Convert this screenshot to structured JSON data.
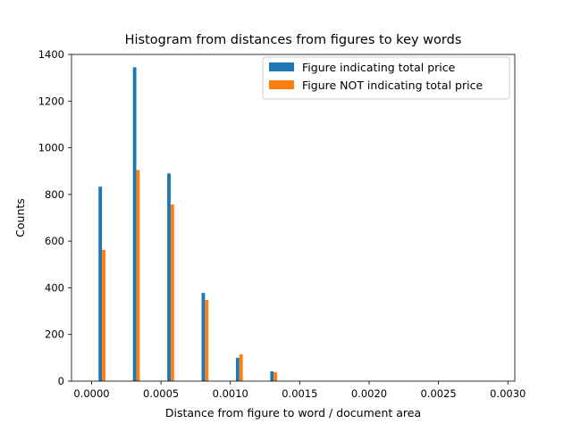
{
  "chart_data": {
    "type": "bar",
    "title": "Histogram from distances from figures to key words",
    "xlabel": "Distance from figure to word / document area",
    "ylabel": "Counts",
    "xlim": [
      -0.000145,
      0.00305
    ],
    "ylim": [
      0,
      1400
    ],
    "x_ticks": [
      "0.0000",
      "0.0005",
      "0.0010",
      "0.0015",
      "0.0020",
      "0.0025",
      "0.0030"
    ],
    "x_tick_values": [
      0,
      0.0005,
      0.001,
      0.0015,
      0.002,
      0.0025,
      0.003
    ],
    "y_ticks": [
      "0",
      "200",
      "400",
      "600",
      "800",
      "1000",
      "1200",
      "1400"
    ],
    "y_tick_values": [
      0,
      200,
      400,
      600,
      800,
      1000,
      1200,
      1400
    ],
    "bin_edges": [
      5e-05,
      9.95e-05,
      0.000149,
      0.0001985,
      0.000248,
      0.0002975,
      0.000347,
      0.0003965,
      0.000446,
      0.0004955,
      0.000545,
      0.0005945,
      0.000644,
      0.0006935,
      0.000743,
      0.0007925,
      0.000842,
      0.0008915,
      0.000941,
      0.0009905,
      0.00104,
      0.0010895,
      0.001139,
      0.0011885,
      0.001238,
      0.0012875,
      0.001337,
      0.0013865,
      0.001436,
      0.0014855,
      0.001535,
      0.0015845,
      0.001634,
      0.0016835,
      0.001733,
      0.0017825,
      0.001832,
      0.0018815,
      0.001931,
      0.0019805,
      0.00203
    ],
    "series": [
      {
        "name": "Figure indicating total price",
        "color": "#1f77b4",
        "values": [
          833,
          0,
          0,
          0,
          0,
          1345,
          0,
          0,
          0,
          0,
          890,
          0,
          0,
          0,
          0,
          378,
          0,
          0,
          0,
          0,
          100,
          0,
          0,
          0,
          0,
          42,
          0,
          0,
          0,
          0,
          0,
          0,
          0,
          0,
          0,
          0,
          0,
          0,
          0,
          0
        ]
      },
      {
        "name": "Figure NOT indicating total price",
        "color": "#ff7f0e",
        "values": [
          563,
          0,
          0,
          0,
          0,
          905,
          0,
          0,
          0,
          0,
          757,
          0,
          0,
          0,
          0,
          348,
          0,
          0,
          0,
          0,
          115,
          0,
          0,
          0,
          0,
          38,
          0,
          0,
          0,
          0,
          0,
          0,
          0,
          0,
          0,
          0,
          0,
          0,
          0,
          0
        ]
      }
    ],
    "grid": false,
    "legend_position": "upper-right"
  }
}
